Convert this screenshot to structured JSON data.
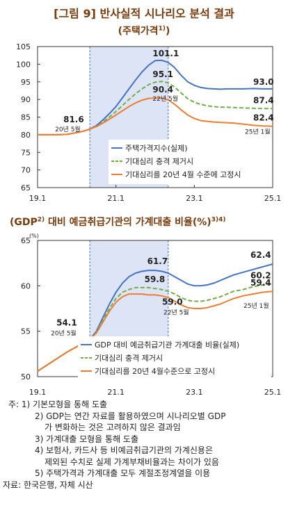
{
  "figure_title": "[그림 9] 반사실적 시나리오 분석 결과",
  "panel1_title": "(주택가격",
  "panel1_title_sup": "1)",
  "panel1_title_end": ")",
  "panel2_title": "(GDP",
  "panel2_title_sup1": "2)",
  "panel2_title_mid": " 대비 예금취급기관의 가계대출 비율",
  "panel2_title_unit": "(%)",
  "panel2_title_sup2": "3)4)",
  "notes": [
    "주: 1) 기본모형을 통해 도출",
    "2) GDP는 연간 자료를 활용하였으며 시나리오별 GDP",
    "가 변화하는 것은 고려하지 않은 결과임",
    "3) 가계대출 모형을 통해 도출",
    "4) 보험사, 카드사 등 비예금취급기관의 가계신용은",
    "제외된 수치로 실제 가계부채비율과는 차이가 있음",
    "5) 주택가격과 가계대출 모두 계절조정계열을 이용",
    "자료: 한국은행, 자체 시산"
  ],
  "chart_data": [
    {
      "type": "line",
      "title": "주택가격",
      "x_ticks": [
        "19.1",
        "21.1",
        "23.1",
        "25.1"
      ],
      "ylim": [
        65,
        105
      ],
      "y_ticks": [
        65,
        70,
        75,
        80,
        85,
        90,
        95,
        100,
        105
      ],
      "shaded_region": [
        "20.5",
        "22.5"
      ],
      "grid": false,
      "legend_position": "right-middle",
      "series": [
        {
          "name": "주택가격지수(실제)",
          "color": "#4472c4",
          "style": "solid",
          "x": [
            "19.1",
            "19.4",
            "19.7",
            "19.10",
            "20.1",
            "20.3",
            "20.5",
            "20.7",
            "20.9",
            "20.11",
            "21.1",
            "21.3",
            "21.5",
            "21.7",
            "21.9",
            "21.11",
            "22.1",
            "22.3",
            "22.5",
            "22.7",
            "22.9",
            "22.11",
            "23.1",
            "23.3",
            "23.5",
            "23.7",
            "23.9",
            "23.11",
            "24.1",
            "24.4",
            "24.7",
            "24.10",
            "25.1"
          ],
          "y": [
            80.0,
            80.0,
            80.0,
            80.1,
            80.6,
            81.0,
            81.6,
            82.6,
            84.2,
            86.0,
            88.0,
            90.5,
            93.0,
            95.5,
            97.8,
            99.7,
            101.0,
            101.1,
            100.5,
            99.0,
            96.8,
            95.0,
            94.0,
            93.4,
            93.1,
            93.0,
            92.9,
            93.0,
            93.0,
            93.0,
            93.1,
            93.0,
            93.0
          ]
        },
        {
          "name": "기대심리 충격 제거시",
          "color": "#70ad47",
          "style": "dashed",
          "x": [
            "19.1",
            "19.4",
            "19.7",
            "19.10",
            "20.1",
            "20.3",
            "20.5",
            "20.7",
            "20.9",
            "20.11",
            "21.1",
            "21.3",
            "21.5",
            "21.7",
            "21.9",
            "21.11",
            "22.1",
            "22.3",
            "22.5",
            "22.7",
            "22.9",
            "22.11",
            "23.1",
            "23.3",
            "23.5",
            "23.7",
            "23.9",
            "23.11",
            "24.1",
            "24.4",
            "24.7",
            "24.10",
            "25.1"
          ],
          "y": [
            80.0,
            80.0,
            80.0,
            80.1,
            80.6,
            81.0,
            81.6,
            82.4,
            83.6,
            85.0,
            86.6,
            88.3,
            90.0,
            91.6,
            93.0,
            94.2,
            94.9,
            95.1,
            94.7,
            93.5,
            91.8,
            90.2,
            89.2,
            88.6,
            88.2,
            88.0,
            87.8,
            87.8,
            87.7,
            87.6,
            87.5,
            87.4,
            87.4
          ]
        },
        {
          "name": "기대심리를 20년 4월 수준에 고정시",
          "color": "#ed7d31",
          "style": "solid",
          "x": [
            "19.1",
            "19.4",
            "19.7",
            "19.10",
            "20.1",
            "20.3",
            "20.5",
            "20.7",
            "20.9",
            "20.11",
            "21.1",
            "21.3",
            "21.5",
            "21.7",
            "21.9",
            "21.11",
            "22.1",
            "22.3",
            "22.5",
            "22.7",
            "22.9",
            "22.11",
            "23.1",
            "23.3",
            "23.5",
            "23.7",
            "23.9",
            "23.11",
            "24.1",
            "24.4",
            "24.7",
            "24.10",
            "25.1"
          ],
          "y": [
            80.0,
            80.0,
            80.0,
            80.1,
            80.6,
            81.0,
            81.6,
            82.3,
            83.3,
            84.4,
            85.6,
            86.8,
            88.0,
            89.0,
            89.8,
            90.3,
            90.4,
            90.4,
            89.9,
            88.6,
            87.0,
            85.6,
            84.6,
            84.0,
            83.8,
            83.6,
            83.5,
            83.4,
            83.3,
            83.0,
            82.7,
            82.5,
            82.4
          ]
        }
      ],
      "annotations": [
        {
          "text": "101.1",
          "x": "22.3",
          "y": 101.1
        },
        {
          "text": "95.1",
          "x": "22.3",
          "y": 95.1
        },
        {
          "text": "90.4",
          "x": "22.3",
          "y": 90.4,
          "sub": "22년 5월"
        },
        {
          "text": "81.6",
          "x": "20.5",
          "y": 81.6,
          "sub": "20년 5월"
        },
        {
          "text": "93.0",
          "x": "25.1",
          "y": 93.0
        },
        {
          "text": "87.4",
          "x": "25.1",
          "y": 87.4
        },
        {
          "text": "82.4",
          "x": "25.1",
          "y": 82.4,
          "sub": "25년 1월"
        }
      ]
    },
    {
      "type": "line",
      "title": "GDP 대비 예금취급기관의 가계대출 비율(%)",
      "ylabel": "(%)",
      "x_ticks": [
        "19.1",
        "21.1",
        "23.1",
        "25.1"
      ],
      "ylim": [
        50,
        65
      ],
      "y_ticks": [
        50,
        55,
        60,
        65
      ],
      "shaded_region": [
        "20.5",
        "22.5"
      ],
      "grid": false,
      "legend_position": "bottom-right",
      "series": [
        {
          "name": "GDP 대비 예금취급기관 가계대출 비율(실제)",
          "color": "#4472c4",
          "style": "solid",
          "x": [
            "19.1",
            "19.4",
            "19.7",
            "19.10",
            "20.1",
            "20.3",
            "20.5",
            "20.7",
            "20.9",
            "20.11",
            "21.1",
            "21.3",
            "21.5",
            "21.7",
            "21.9",
            "21.11",
            "22.1",
            "22.3",
            "22.5",
            "22.7",
            "22.9",
            "22.11",
            "23.1",
            "23.3",
            "23.5",
            "23.7",
            "23.9",
            "23.11",
            "24.1",
            "24.4",
            "24.7",
            "24.10",
            "25.1"
          ],
          "y": [
            50.6,
            51.3,
            52.0,
            52.7,
            53.3,
            53.7,
            54.1,
            55.0,
            56.5,
            58.0,
            59.3,
            60.3,
            61.0,
            61.4,
            61.6,
            61.7,
            61.7,
            61.6,
            61.4,
            61.0,
            60.6,
            60.2,
            60.0,
            60.0,
            60.1,
            60.3,
            60.6,
            60.9,
            61.2,
            61.5,
            61.8,
            62.1,
            62.4
          ]
        },
        {
          "name": "기대심리 충격 제거시",
          "color": "#70ad47",
          "style": "dashed",
          "x": [
            "19.1",
            "19.4",
            "19.7",
            "19.10",
            "20.1",
            "20.3",
            "20.5",
            "20.7",
            "20.9",
            "20.11",
            "21.1",
            "21.3",
            "21.5",
            "21.7",
            "21.9",
            "21.11",
            "22.1",
            "22.3",
            "22.5",
            "22.7",
            "22.9",
            "22.11",
            "23.1",
            "23.3",
            "23.5",
            "23.7",
            "23.9",
            "23.11",
            "24.1",
            "24.4",
            "24.7",
            "24.10",
            "25.1"
          ],
          "y": [
            50.6,
            51.3,
            52.0,
            52.7,
            53.3,
            53.7,
            54.1,
            54.9,
            56.2,
            57.5,
            58.6,
            59.3,
            59.6,
            59.8,
            59.8,
            59.8,
            59.7,
            59.6,
            59.4,
            59.1,
            58.7,
            58.4,
            58.3,
            58.3,
            58.4,
            58.6,
            58.8,
            59.1,
            59.4,
            59.6,
            59.9,
            60.1,
            60.2
          ]
        },
        {
          "name": "기대심리를 20년 4월수준으로 고정시",
          "color": "#ed7d31",
          "style": "solid",
          "x": [
            "19.1",
            "19.4",
            "19.7",
            "19.10",
            "20.1",
            "20.3",
            "20.5",
            "20.7",
            "20.9",
            "20.11",
            "21.1",
            "21.3",
            "21.5",
            "21.7",
            "21.9",
            "21.11",
            "22.1",
            "22.3",
            "22.5",
            "22.7",
            "22.9",
            "22.11",
            "23.1",
            "23.3",
            "23.5",
            "23.7",
            "23.9",
            "23.11",
            "24.1",
            "24.4",
            "24.7",
            "24.10",
            "25.1"
          ],
          "y": [
            50.6,
            51.3,
            52.0,
            52.7,
            53.3,
            53.7,
            54.1,
            54.8,
            56.0,
            57.2,
            58.2,
            58.8,
            59.1,
            59.1,
            59.1,
            59.0,
            59.0,
            58.9,
            58.7,
            58.3,
            57.9,
            57.6,
            57.5,
            57.5,
            57.6,
            57.8,
            58.0,
            58.3,
            58.6,
            58.9,
            59.1,
            59.3,
            59.4
          ]
        }
      ],
      "annotations": [
        {
          "text": "61.7",
          "x": "21.11",
          "y": 61.7
        },
        {
          "text": "59.8",
          "x": "21.11",
          "y": 59.8
        },
        {
          "text": "59.0",
          "x": "22.1",
          "y": 59.0,
          "sub": "22년 5월"
        },
        {
          "text": "54.1",
          "x": "20.5",
          "y": 54.1,
          "sub": "20년 5월"
        },
        {
          "text": "62.4",
          "x": "25.1",
          "y": 62.4
        },
        {
          "text": "60.2",
          "x": "25.1",
          "y": 60.2
        },
        {
          "text": "59.4",
          "x": "25.1",
          "y": 59.4,
          "sub": "25년 1월"
        }
      ]
    }
  ]
}
